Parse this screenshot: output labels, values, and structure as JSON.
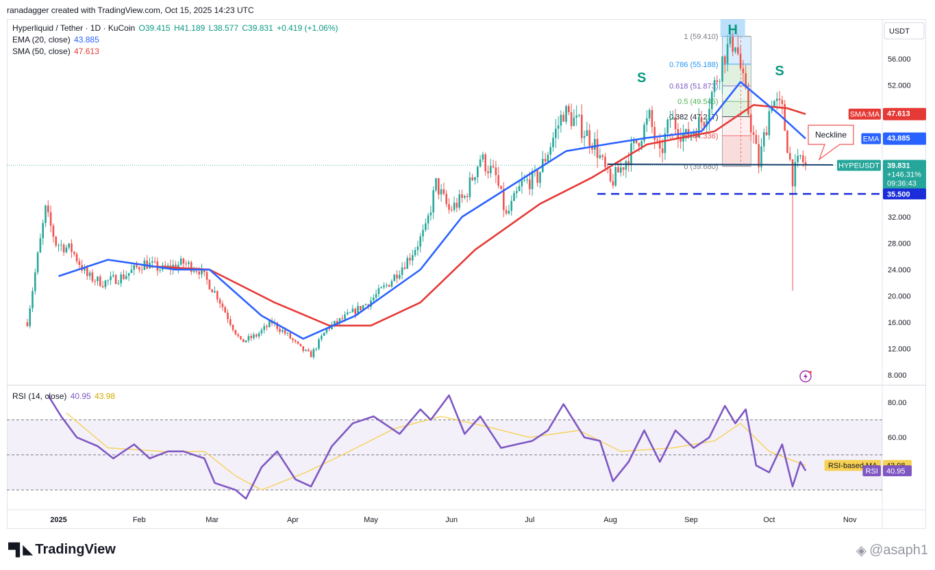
{
  "header": {
    "created_by": "ranadagger created with TradingView.com, Oct 15, 2025 14:23 UTC"
  },
  "legend": {
    "symbol": "Hyperliquid / Tether · 1D · KuCoin",
    "ohlc": {
      "o": "O39.415",
      "h": "H41.189",
      "l": "L38.577",
      "c": "C39.831",
      "chg": "+0.419 (+1.06%)"
    },
    "ema": {
      "label": "EMA (20, close)",
      "value": "43.885"
    },
    "sma": {
      "label": "SMA (50, close)",
      "value": "47.613"
    },
    "rsi": {
      "label": "RSI (14, close)",
      "value": "40.95",
      "ma_value": "43.98"
    }
  },
  "colors": {
    "up": "#26a69a",
    "down": "#ef5350",
    "ema": "#2962ff",
    "sma": "#e53935",
    "rsi": "#7e57c2",
    "rsi_ma": "#f7d154",
    "neckline": "#1a3a6b",
    "support": "#1a2dd8",
    "pattern_label": "#089981",
    "axis_text": "#131722"
  },
  "footer": {
    "brand": "TradingView",
    "watermark": "@asaph1"
  },
  "chart_data": [
    {
      "type": "candlestick",
      "pane": "price",
      "currency": "USDT",
      "y_ticks": [
        8,
        12,
        16,
        20,
        24,
        28,
        32,
        36,
        40,
        44,
        48,
        52,
        56
      ],
      "y_tick_labels": [
        "8.000",
        "12.000",
        "16.000",
        "20.000",
        "24.000",
        "28.000",
        "32.000",
        "",
        "",
        "",
        "",
        "52.000",
        "56.000"
      ],
      "x_labels": [
        "2025",
        "Feb",
        "Mar",
        "Apr",
        "May",
        "Jun",
        "Jul",
        "Aug",
        "Sep",
        "Oct",
        "Nov"
      ],
      "price_path": [
        [
          "2024-12-20",
          16
        ],
        [
          "2024-12-24",
          26
        ],
        [
          "2024-12-27",
          33
        ],
        [
          "2024-12-31",
          28
        ],
        [
          "2025-01-06",
          27
        ],
        [
          "2025-01-12",
          23
        ],
        [
          "2025-01-18",
          22
        ],
        [
          "2025-01-26",
          23
        ],
        [
          "2025-02-03",
          25
        ],
        [
          "2025-02-10",
          24
        ],
        [
          "2025-02-18",
          25
        ],
        [
          "2025-02-24",
          24
        ],
        [
          "2025-03-03",
          20
        ],
        [
          "2025-03-08",
          16
        ],
        [
          "2025-03-12",
          13
        ],
        [
          "2025-03-18",
          14
        ],
        [
          "2025-03-24",
          16
        ],
        [
          "2025-03-30",
          14
        ],
        [
          "2025-04-04",
          12
        ],
        [
          "2025-04-08",
          11
        ],
        [
          "2025-04-14",
          15
        ],
        [
          "2025-04-22",
          17
        ],
        [
          "2025-04-30",
          19
        ],
        [
          "2025-05-08",
          22
        ],
        [
          "2025-05-16",
          26
        ],
        [
          "2025-05-22",
          30
        ],
        [
          "2025-05-26",
          37
        ],
        [
          "2025-05-31",
          33
        ],
        [
          "2025-06-06",
          35
        ],
        [
          "2025-06-12",
          41
        ],
        [
          "2025-06-18",
          38
        ],
        [
          "2025-06-22",
          32
        ],
        [
          "2025-06-28",
          37
        ],
        [
          "2025-07-04",
          38
        ],
        [
          "2025-07-10",
          44
        ],
        [
          "2025-07-14",
          48
        ],
        [
          "2025-07-20",
          46
        ],
        [
          "2025-07-26",
          43
        ],
        [
          "2025-08-01",
          37
        ],
        [
          "2025-08-06",
          40
        ],
        [
          "2025-08-12",
          44
        ],
        [
          "2025-08-16",
          47
        ],
        [
          "2025-08-20",
          41
        ],
        [
          "2025-08-24",
          47
        ],
        [
          "2025-08-30",
          44
        ],
        [
          "2025-09-06",
          47
        ],
        [
          "2025-09-10",
          52
        ],
        [
          "2025-09-14",
          57
        ],
        [
          "2025-09-18",
          59
        ],
        [
          "2025-09-22",
          50
        ],
        [
          "2025-09-27",
          40
        ],
        [
          "2025-10-02",
          50
        ],
        [
          "2025-10-06",
          48
        ],
        [
          "2025-10-10",
          38
        ],
        [
          "2025-10-13",
          41
        ],
        [
          "2025-10-15",
          39.8
        ]
      ],
      "lowest_wick": {
        "date": "2025-10-10",
        "low": 20.8
      },
      "ema_20_path": [
        [
          "2025-01-01",
          23
        ],
        [
          "2025-01-20",
          25.5
        ],
        [
          "2025-02-15",
          24
        ],
        [
          "2025-02-28",
          24
        ],
        [
          "2025-03-20",
          17
        ],
        [
          "2025-04-05",
          13.5
        ],
        [
          "2025-04-25",
          17
        ],
        [
          "2025-05-20",
          24
        ],
        [
          "2025-06-05",
          32
        ],
        [
          "2025-06-25",
          37
        ],
        [
          "2025-07-15",
          42
        ],
        [
          "2025-07-30",
          43
        ],
        [
          "2025-08-15",
          44
        ],
        [
          "2025-09-05",
          45
        ],
        [
          "2025-09-20",
          52.5
        ],
        [
          "2025-10-05",
          47.5
        ],
        [
          "2025-10-15",
          43.885
        ]
      ],
      "sma_50_path": [
        [
          "2025-02-05",
          24.5
        ],
        [
          "2025-02-28",
          24
        ],
        [
          "2025-03-25",
          19
        ],
        [
          "2025-04-15",
          15.5
        ],
        [
          "2025-05-01",
          15.5
        ],
        [
          "2025-05-20",
          19
        ],
        [
          "2025-06-10",
          27
        ],
        [
          "2025-07-05",
          34
        ],
        [
          "2025-07-25",
          38
        ],
        [
          "2025-08-15",
          43
        ],
        [
          "2025-09-10",
          45
        ],
        [
          "2025-09-25",
          49
        ],
        [
          "2025-10-08",
          48.5
        ],
        [
          "2025-10-15",
          47.613
        ]
      ],
      "fibonacci": [
        {
          "ratio": "1",
          "level": 59.41,
          "text": "1 (59.410)"
        },
        {
          "ratio": "0.786",
          "level": 55.188,
          "text": "0.786 (55.188)"
        },
        {
          "ratio": "0.618",
          "level": 51.873,
          "text": "0.618 (51.873)"
        },
        {
          "ratio": "0.5",
          "level": 49.545,
          "text": "0.5 (49.545)"
        },
        {
          "ratio": "0.382",
          "level": 47.217,
          "text": "0.382 (47.217)"
        },
        {
          "ratio": "0.236",
          "level": 44.336,
          "text": "0.236 (44.336)"
        },
        {
          "ratio": "0",
          "level": 39.68,
          "text": "0 (39.680)"
        }
      ],
      "annotations": {
        "head_label": "H",
        "left_shoulder_label": "S",
        "right_shoulder_label": "S",
        "neckline_label": "Neckline",
        "neckline_level": 40,
        "support_level": 35.5
      },
      "price_tags": {
        "sma": {
          "name": "SMA:MA",
          "value": "47.613"
        },
        "ema": {
          "name": "EMA",
          "value": "43.885"
        },
        "symbol": {
          "name": "HYPEUSDT",
          "value": "39.831",
          "change": "+146.31%",
          "countdown": "09:36:43"
        },
        "support": "35.500"
      }
    },
    {
      "type": "line",
      "pane": "rsi",
      "title": "RSI (14, close)",
      "y_ticks": [
        40,
        60,
        80
      ],
      "y_tick_labels": [
        "",
        "60.00",
        "80.00"
      ],
      "bands": {
        "upper": 70,
        "middle": 50,
        "lower": 30
      },
      "rsi_path": [
        [
          "2024-12-28",
          84
        ],
        [
          "2025-01-02",
          72
        ],
        [
          "2025-01-08",
          60
        ],
        [
          "2025-01-16",
          55
        ],
        [
          "2025-01-22",
          48
        ],
        [
          "2025-01-30",
          56
        ],
        [
          "2025-02-05",
          48
        ],
        [
          "2025-02-12",
          52
        ],
        [
          "2025-02-18",
          52
        ],
        [
          "2025-02-26",
          48
        ],
        [
          "2025-03-02",
          34
        ],
        [
          "2025-03-10",
          30
        ],
        [
          "2025-03-14",
          25
        ],
        [
          "2025-03-20",
          43
        ],
        [
          "2025-03-26",
          52
        ],
        [
          "2025-04-02",
          36
        ],
        [
          "2025-04-08",
          32
        ],
        [
          "2025-04-16",
          55
        ],
        [
          "2025-04-24",
          68
        ],
        [
          "2025-05-02",
          72
        ],
        [
          "2025-05-12",
          62
        ],
        [
          "2025-05-20",
          76
        ],
        [
          "2025-05-24",
          70
        ],
        [
          "2025-05-31",
          84
        ],
        [
          "2025-06-06",
          62
        ],
        [
          "2025-06-12",
          72
        ],
        [
          "2025-06-20",
          54
        ],
        [
          "2025-06-26",
          56
        ],
        [
          "2025-07-02",
          58
        ],
        [
          "2025-07-08",
          64
        ],
        [
          "2025-07-14",
          79
        ],
        [
          "2025-07-22",
          60
        ],
        [
          "2025-07-28",
          58
        ],
        [
          "2025-08-02",
          35
        ],
        [
          "2025-08-08",
          46
        ],
        [
          "2025-08-14",
          64
        ],
        [
          "2025-08-20",
          46
        ],
        [
          "2025-08-26",
          64
        ],
        [
          "2025-09-02",
          54
        ],
        [
          "2025-09-08",
          60
        ],
        [
          "2025-09-14",
          78
        ],
        [
          "2025-09-18",
          68
        ],
        [
          "2025-09-22",
          76
        ],
        [
          "2025-09-26",
          44
        ],
        [
          "2025-10-01",
          40
        ],
        [
          "2025-10-06",
          56
        ],
        [
          "2025-10-10",
          32
        ],
        [
          "2025-10-13",
          46
        ],
        [
          "2025-10-15",
          40.95
        ]
      ],
      "rsi_ma_path": [
        [
          "2025-01-04",
          74
        ],
        [
          "2025-01-20",
          54
        ],
        [
          "2025-02-10",
          52
        ],
        [
          "2025-02-26",
          52
        ],
        [
          "2025-03-10",
          38
        ],
        [
          "2025-03-20",
          30
        ],
        [
          "2025-04-06",
          40
        ],
        [
          "2025-04-20",
          50
        ],
        [
          "2025-05-10",
          65
        ],
        [
          "2025-05-28",
          72
        ],
        [
          "2025-06-15",
          66
        ],
        [
          "2025-07-01",
          60
        ],
        [
          "2025-07-20",
          64
        ],
        [
          "2025-08-05",
          52
        ],
        [
          "2025-08-25",
          54
        ],
        [
          "2025-09-10",
          58
        ],
        [
          "2025-09-20",
          68
        ],
        [
          "2025-10-01",
          52
        ],
        [
          "2025-10-15",
          43.98
        ]
      ],
      "value_tags": [
        {
          "name": "RSI-based MA",
          "value": "43.98"
        },
        {
          "name": "RSI",
          "value": "40.95"
        }
      ]
    }
  ]
}
